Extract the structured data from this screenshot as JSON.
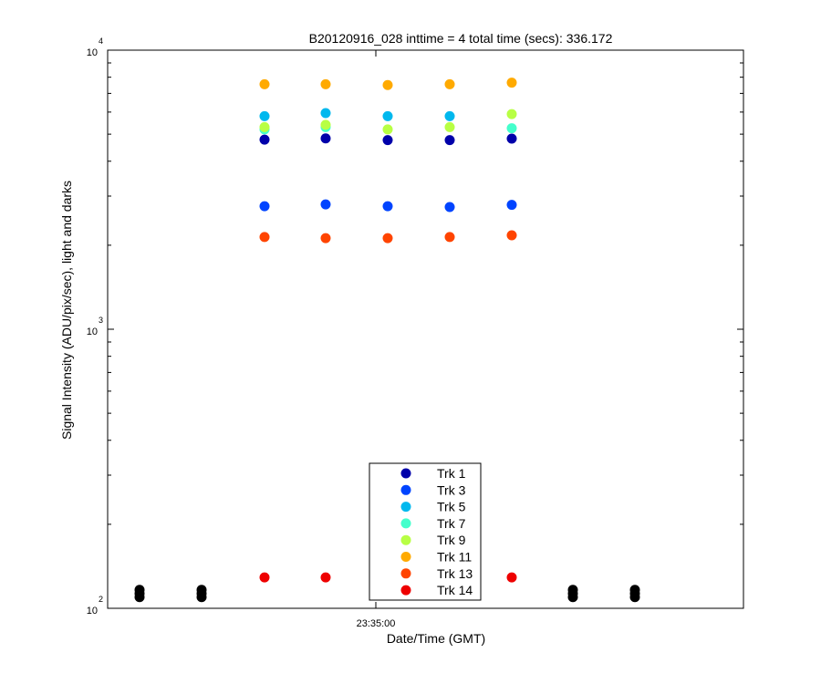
{
  "chart_data": {
    "type": "scatter",
    "title": "B20120916_028 inttime = 4 total time (secs): 336.172",
    "xlabel": "Date/Time (GMT)",
    "ylabel": "Signal Intensity (ADU/pix/sec), light and darks",
    "yscale": "log",
    "ylim": [
      100,
      10000
    ],
    "x_tick_label": "23:35:00",
    "y_tick_labels": [
      {
        "base": "10",
        "exp": "2"
      },
      {
        "base": "10",
        "exp": "3"
      },
      {
        "base": "10",
        "exp": "4"
      }
    ],
    "x": [
      1,
      2,
      3,
      4,
      5,
      6,
      7,
      8,
      9,
      10
    ],
    "series": [
      {
        "name": "Trk 1",
        "color": "#0000aa",
        "values": [
          null,
          null,
          4780,
          4830,
          4760,
          4760,
          4820,
          null,
          null,
          null
        ]
      },
      {
        "name": "Trk 3",
        "color": "#0044ff",
        "values": [
          null,
          null,
          2760,
          2800,
          2760,
          2740,
          2790,
          null,
          null,
          null
        ]
      },
      {
        "name": "Trk 5",
        "color": "#00b8ee",
        "values": [
          null,
          null,
          5800,
          5950,
          5800,
          5800,
          null,
          null,
          null,
          null
        ]
      },
      {
        "name": "Trk 7",
        "color": "#44ffcc",
        "values": [
          null,
          null,
          5200,
          5300,
          null,
          null,
          5250,
          null,
          null,
          null
        ]
      },
      {
        "name": "Trk 9",
        "color": "#b8ff44",
        "values": [
          null,
          null,
          5300,
          5400,
          5200,
          5300,
          5900,
          null,
          null,
          null
        ]
      },
      {
        "name": "Trk 11",
        "color": "#ffaa00",
        "values": [
          null,
          null,
          7550,
          7550,
          7500,
          7550,
          7650,
          null,
          null,
          null
        ]
      },
      {
        "name": "Trk 13",
        "color": "#ff4400",
        "values": [
          null,
          null,
          2140,
          2120,
          2120,
          2140,
          2170,
          null,
          null,
          null
        ]
      },
      {
        "name": "Trk 14",
        "color": "#ee0000",
        "values": [
          null,
          null,
          129,
          129,
          null,
          null,
          129,
          null,
          null,
          null
        ]
      },
      {
        "color": "#000000",
        "values": [
          113,
          113,
          null,
          null,
          null,
          null,
          null,
          113,
          113,
          null
        ]
      }
    ],
    "legend": {
      "placement": "bottom-center"
    },
    "grid": false
  }
}
